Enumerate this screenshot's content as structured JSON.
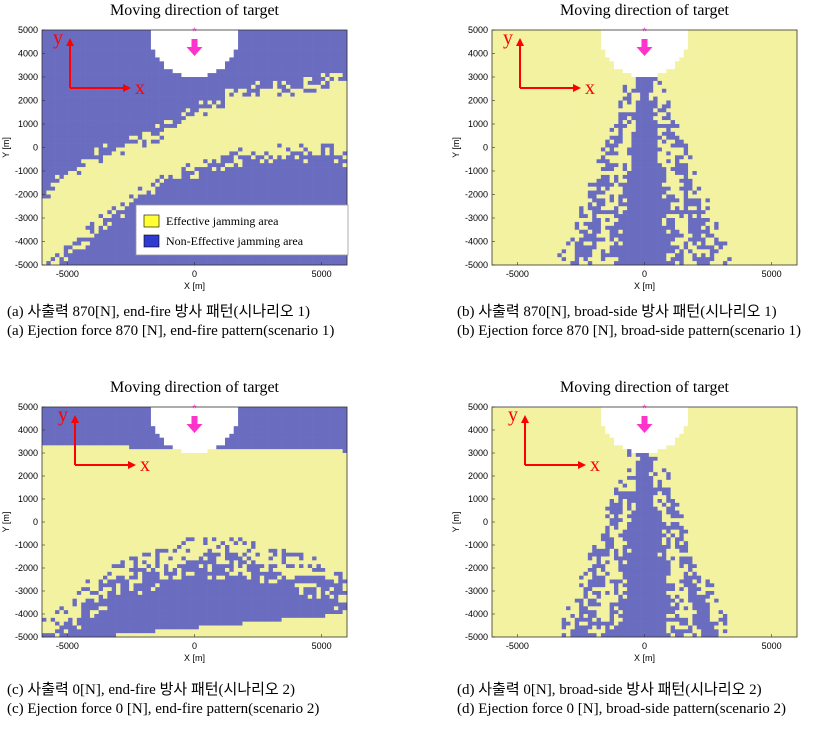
{
  "colors": {
    "effective": "#f2f2a0",
    "non_effective": "#6a6cc0",
    "grid": "#3a3aa0",
    "arrow": "#ff0000",
    "target": "#ff33cc",
    "legend_yellow": "#ffff33",
    "legend_blue": "#2f3bd0"
  },
  "legend": {
    "effective": "Effective jamming area",
    "non_effective": "Non-Effective jamming area"
  },
  "chart_data": [
    {
      "type": "heatmap",
      "title": "Moving direction of target",
      "xlabel": "X [m]",
      "ylabel": "Y [m]",
      "xticks": [
        "-5000",
        "0",
        "5000"
      ],
      "yticks": [
        "5000",
        "4000",
        "3000",
        "2000",
        "1000",
        "0",
        "-1000",
        "-2000",
        "-3000",
        "-4000",
        "-5000"
      ],
      "xlim": [
        -6000,
        6000
      ],
      "ylim": [
        -5000,
        5000
      ],
      "axis_x": "x",
      "axis_y": "y",
      "pattern": "end-fire",
      "scenario": 1,
      "caption_kr": "(a) 사출력 870[N], end-fire 방사 패턴(시나리오 1)",
      "caption_en": "(a) Ejection force 870 [N], end-fire pattern(scenario 1)"
    },
    {
      "type": "heatmap",
      "title": "Moving direction of target",
      "xlabel": "X [m]",
      "ylabel": "Y [m]",
      "xticks": [
        "-5000",
        "0",
        "5000"
      ],
      "yticks": [
        "5000",
        "4000",
        "3000",
        "2000",
        "1000",
        "0",
        "-1000",
        "-2000",
        "-3000",
        "-4000",
        "-5000"
      ],
      "xlim": [
        -6000,
        6000
      ],
      "ylim": [
        -5000,
        5000
      ],
      "axis_x": "x",
      "axis_y": "y",
      "pattern": "broad-side",
      "scenario": 1,
      "caption_kr": "(b) 사출력 870[N], broad-side 방사 패턴(시나리오 1)",
      "caption_en": "(b) Ejection force 870 [N], broad-side pattern(scenario 1)"
    },
    {
      "type": "heatmap",
      "title": "Moving direction of target",
      "xlabel": "X [m]",
      "ylabel": "Y [m]",
      "xticks": [
        "-5000",
        "0",
        "5000"
      ],
      "yticks": [
        "5000",
        "4000",
        "3000",
        "2000",
        "1000",
        "0",
        "-1000",
        "-2000",
        "-3000",
        "-4000",
        "-5000"
      ],
      "xlim": [
        -6000,
        6000
      ],
      "ylim": [
        -5000,
        5000
      ],
      "axis_x": "x",
      "axis_y": "y",
      "pattern": "end-fire",
      "scenario": 2,
      "caption_kr": "(c) 사출력 0[N], end-fire 방사 패턴(시나리오 2)",
      "caption_en": "(c) Ejection force 0 [N], end-fire pattern(scenario 2)"
    },
    {
      "type": "heatmap",
      "title": "Moving direction of target",
      "xlabel": "X [m]",
      "ylabel": "Y [m]",
      "xticks": [
        "-5000",
        "0",
        "5000"
      ],
      "yticks": [
        "5000",
        "4000",
        "3000",
        "2000",
        "1000",
        "0",
        "-1000",
        "-2000",
        "-3000",
        "-4000",
        "-5000"
      ],
      "xlim": [
        -6000,
        6000
      ],
      "ylim": [
        -5000,
        5000
      ],
      "axis_x": "x",
      "axis_y": "y",
      "pattern": "broad-side",
      "scenario": 2,
      "caption_kr": "(d) 사출력 0[N], broad-side 방사 패턴(시나리오 2)",
      "caption_en": "(d) Ejection force 0 [N], broad-side pattern(scenario 2)"
    }
  ]
}
